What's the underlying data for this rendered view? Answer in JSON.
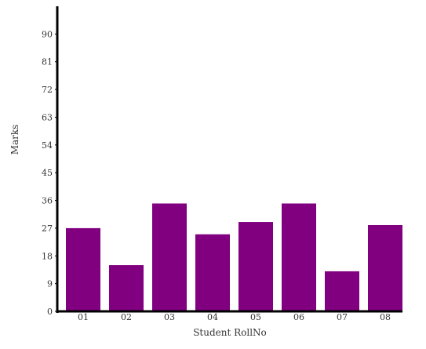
{
  "colors": {
    "bar": "#800080",
    "axis": "#000000",
    "text": "#333333",
    "background": "#ffffff"
  },
  "chart_data": {
    "type": "bar",
    "title": "",
    "xlabel": "Student RollNo",
    "ylabel": "Marks",
    "categories": [
      "01",
      "02",
      "03",
      "04",
      "05",
      "06",
      "07",
      "08"
    ],
    "values": [
      27,
      15,
      35,
      25,
      29,
      35,
      13,
      28
    ],
    "ylim": [
      0,
      99
    ],
    "yticks": [
      0,
      9,
      18,
      27,
      36,
      45,
      54,
      63,
      72,
      81,
      90
    ],
    "grid": false,
    "legend": "none"
  }
}
